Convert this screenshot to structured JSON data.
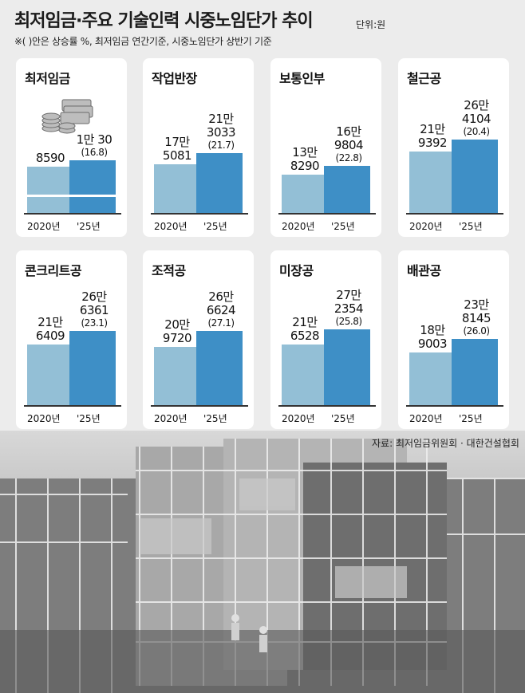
{
  "header": {
    "title": "최저임금·주요 기술인력 시중노임단가 추이",
    "unit": "단위:원",
    "note": "※(  )안은 상승률 %, 최저임금 연간기준, 시중노임단가 상반기 기준"
  },
  "source": "자료: 최저임금위원회 · 대한건설협회",
  "colors": {
    "bar_2020": "#93bfd6",
    "bar_2025": "#3e8fc6",
    "card": "#ffffff",
    "background": "#ececec"
  },
  "chart_data": [
    {
      "type": "bar",
      "title": "최저임금",
      "categories": [
        "2020년",
        "'25년"
      ],
      "values": [
        8590,
        10030
      ],
      "labels": [
        [
          "8590"
        ],
        [
          "1만 30"
        ]
      ],
      "growth_label": "(16.8)",
      "icon": "coins-and-bills-icon"
    },
    {
      "type": "bar",
      "title": "작업반장",
      "categories": [
        "2020년",
        "'25년"
      ],
      "values": [
        175081,
        213033
      ],
      "labels": [
        [
          "17만",
          "5081"
        ],
        [
          "21만",
          "3033"
        ]
      ],
      "growth_label": "(21.7)"
    },
    {
      "type": "bar",
      "title": "보통인부",
      "categories": [
        "2020년",
        "'25년"
      ],
      "values": [
        138290,
        169804
      ],
      "labels": [
        [
          "13만",
          "8290"
        ],
        [
          "16만",
          "9804"
        ]
      ],
      "growth_label": "(22.8)"
    },
    {
      "type": "bar",
      "title": "철근공",
      "categories": [
        "2020년",
        "'25년"
      ],
      "values": [
        219392,
        264104
      ],
      "labels": [
        [
          "21만",
          "9392"
        ],
        [
          "26만",
          "4104"
        ]
      ],
      "growth_label": "(20.4)"
    },
    {
      "type": "bar",
      "title": "콘크리트공",
      "categories": [
        "2020년",
        "'25년"
      ],
      "values": [
        216409,
        266361
      ],
      "labels": [
        [
          "21만",
          "6409"
        ],
        [
          "26만",
          "6361"
        ]
      ],
      "growth_label": "(23.1)"
    },
    {
      "type": "bar",
      "title": "조적공",
      "categories": [
        "2020년",
        "'25년"
      ],
      "values": [
        209720,
        266624
      ],
      "labels": [
        [
          "20만",
          "9720"
        ],
        [
          "26만",
          "6624"
        ]
      ],
      "growth_label": "(27.1)"
    },
    {
      "type": "bar",
      "title": "미장공",
      "categories": [
        "2020년",
        "'25년"
      ],
      "values": [
        216528,
        272354
      ],
      "labels": [
        [
          "21만",
          "6528"
        ],
        [
          "27만",
          "2354"
        ]
      ],
      "growth_label": "(25.8)"
    },
    {
      "type": "bar",
      "title": "배관공",
      "categories": [
        "2020년",
        "'25년"
      ],
      "values": [
        189003,
        238145
      ],
      "labels": [
        [
          "18만",
          "9003"
        ],
        [
          "23만",
          "8145"
        ]
      ],
      "growth_label": "(26.0)"
    }
  ]
}
